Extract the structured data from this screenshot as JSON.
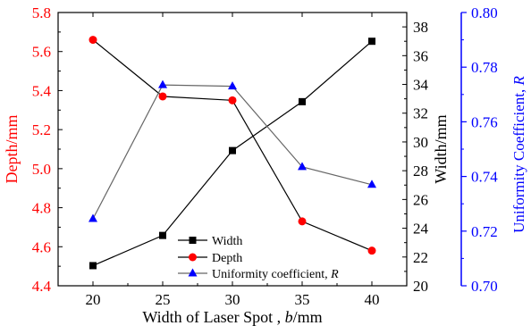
{
  "chart_data": {
    "type": "line",
    "x": [
      20,
      25,
      30,
      35,
      40
    ],
    "xlabel_main": "Width of Laser Spot , ",
    "xlabel_italic": "b",
    "xlabel_unit": "/mm",
    "xlim": [
      17.5,
      42.5
    ],
    "xticks": [
      "20",
      "25",
      "30",
      "35",
      "40"
    ],
    "axes": {
      "left": {
        "label": "Depth/mm",
        "color": "#ff0000",
        "ylim": [
          4.4,
          5.8
        ],
        "ticks": [
          "4.4",
          "4.6",
          "4.8",
          "5.0",
          "5.2",
          "5.4",
          "5.6",
          "5.8"
        ]
      },
      "right1": {
        "label": "Width/mm",
        "color": "#000000",
        "ylim": [
          20,
          39
        ],
        "ticks": [
          "20",
          "22",
          "24",
          "26",
          "28",
          "30",
          "32",
          "34",
          "36",
          "38"
        ]
      },
      "right2": {
        "label_main": "Uniformity Coefficient, ",
        "label_italic": "R",
        "color": "#0000ff",
        "ylim": [
          0.7,
          0.8
        ],
        "ticks": [
          "0.70",
          "0.72",
          "0.74",
          "0.76",
          "0.78",
          "0.80"
        ]
      }
    },
    "series": [
      {
        "name": "Width",
        "axis": "right1",
        "marker": "square",
        "marker_color": "#000000",
        "line_color": "#000000",
        "values": [
          21.4,
          23.5,
          29.4,
          32.8,
          37.0
        ]
      },
      {
        "name": "Depth",
        "axis": "left",
        "marker": "circle",
        "marker_color": "#ff0000",
        "line_color": "#000000",
        "values": [
          5.66,
          5.37,
          5.35,
          4.73,
          4.58
        ]
      },
      {
        "name_main": "Uniformity coefficient, ",
        "name_italic": "R",
        "axis": "right2",
        "marker": "triangle",
        "marker_color": "#0000ff",
        "line_color": "#666666",
        "values": [
          0.7245,
          0.7735,
          0.773,
          0.7435,
          0.737
        ]
      }
    ],
    "legend_position": "bottom-center"
  }
}
